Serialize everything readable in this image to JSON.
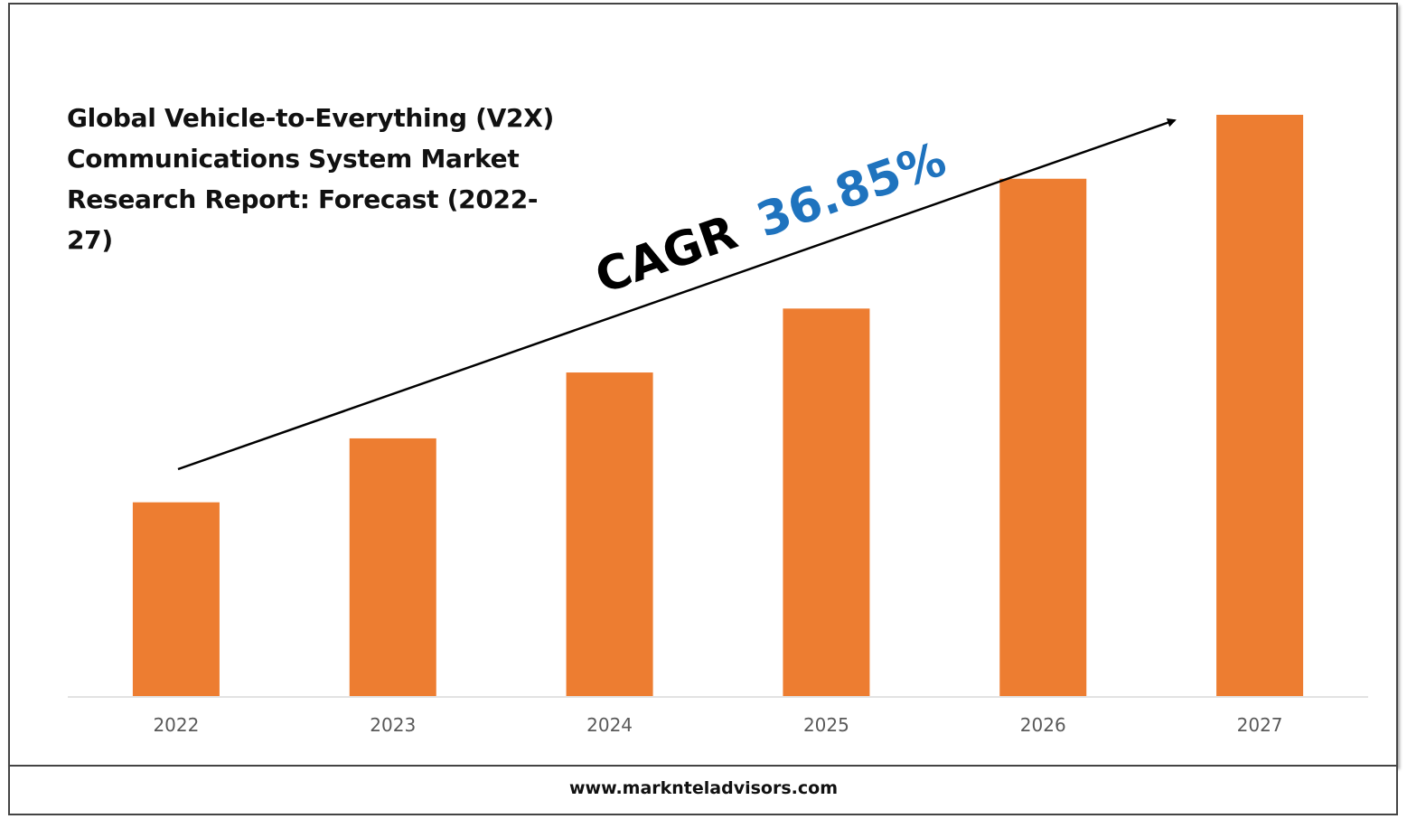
{
  "title": "Global Vehicle-to-Everything (V2X) Communications System Market Research Report: Forecast (2022-27)",
  "footer": "www.marknteladvisors.com",
  "annotation": {
    "prefix": "CAGR",
    "value": "36.85%"
  },
  "colors": {
    "bar": "#ED7D31",
    "annotation_value": "#1F73BE",
    "axis": "#D9D9D9",
    "tick": "#595959"
  },
  "chart_data": {
    "type": "bar",
    "categories": [
      "2022",
      "2023",
      "2024",
      "2025",
      "2026",
      "2027"
    ],
    "values": [
      1.0,
      1.33,
      1.67,
      2.0,
      2.67,
      3.0
    ],
    "title": "Global Vehicle-to-Everything (V2X) Communications System Market Research Report: Forecast (2022-27)",
    "xlabel": "",
    "ylabel": "",
    "ylim": [
      0,
      3.0
    ],
    "grid": false,
    "legend": "none"
  }
}
